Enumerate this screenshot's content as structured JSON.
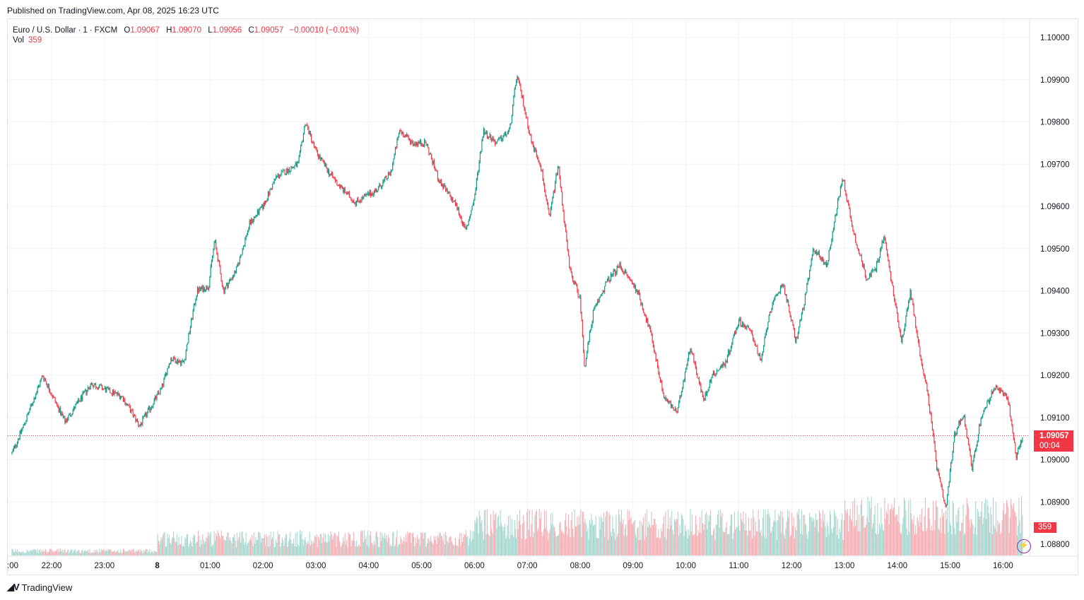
{
  "header": {
    "published": "Published on TradingView.com, Apr 08, 2025 16:23 UTC"
  },
  "legend": {
    "symbol": "Euro / U.S. Dollar",
    "interval": "1",
    "exchange": "FXCM",
    "open_label": "O",
    "open": "1.09067",
    "high_label": "H",
    "high": "1.09070",
    "low_label": "L",
    "low": "1.09056",
    "close_label": "C",
    "close": "1.09057",
    "change": "−0.00010 (−0.01%)",
    "vol_label": "Vol",
    "vol_value": "359"
  },
  "price_tag": {
    "price": "1.09057",
    "countdown": "00:04"
  },
  "volume_tag": "359",
  "footer": {
    "brand": "TradingView"
  },
  "colors": {
    "up": "#089981",
    "down": "#f23645",
    "up_volume": "#9fd6cc",
    "down_volume": "#f6a9af",
    "grid": "#f0f3fa"
  },
  "icons": {
    "lightning": "lightning-icon",
    "logo": "tradingview-logo-icon"
  },
  "chart_data": {
    "type": "candlestick",
    "interval_minutes": 1,
    "y_ticks": [
      "1.10000",
      "1.09900",
      "1.09800",
      "1.09700",
      "1.09600",
      "1.09500",
      "1.09400",
      "1.09300",
      "1.09200",
      "1.09100",
      "1.09000",
      "1.08900",
      "1.08800"
    ],
    "x_ticks": [
      ":00",
      "22:00",
      "23:00",
      "8",
      "01:00",
      "02:00",
      "03:00",
      "04:00",
      "05:00",
      "06:00",
      "07:00",
      "08:00",
      "09:00",
      "10:00",
      "11:00",
      "12:00",
      "13:00",
      "14:00",
      "15:00",
      "16:00"
    ],
    "ylim": [
      1.0878,
      1.1008
    ],
    "last_price": 1.09057,
    "close_path": [
      {
        "t": "21:15",
        "price": 1.09015
      },
      {
        "t": "21:30",
        "price": 1.0909
      },
      {
        "t": "21:50",
        "price": 1.092
      },
      {
        "t": "22:15",
        "price": 1.0909
      },
      {
        "t": "22:45",
        "price": 1.0918
      },
      {
        "t": "23:20",
        "price": 1.0915
      },
      {
        "t": "23:40",
        "price": 1.0908
      },
      {
        "t": "00:05",
        "price": 1.0917
      },
      {
        "t": "00:15",
        "price": 1.0924
      },
      {
        "t": "00:30",
        "price": 1.0923
      },
      {
        "t": "00:45",
        "price": 1.094
      },
      {
        "t": "00:58",
        "price": 1.0941
      },
      {
        "t": "01:05",
        "price": 1.0952
      },
      {
        "t": "01:15",
        "price": 1.094
      },
      {
        "t": "01:30",
        "price": 1.0945
      },
      {
        "t": "01:45",
        "price": 1.0956
      },
      {
        "t": "02:00",
        "price": 1.096
      },
      {
        "t": "02:15",
        "price": 1.0967
      },
      {
        "t": "02:40",
        "price": 1.097
      },
      {
        "t": "02:48",
        "price": 1.098
      },
      {
        "t": "03:00",
        "price": 1.0973
      },
      {
        "t": "03:15",
        "price": 1.0968
      },
      {
        "t": "03:30",
        "price": 1.0964
      },
      {
        "t": "03:45",
        "price": 1.0961
      },
      {
        "t": "04:10",
        "price": 1.0964
      },
      {
        "t": "04:25",
        "price": 1.0968
      },
      {
        "t": "04:35",
        "price": 1.0978
      },
      {
        "t": "04:50",
        "price": 1.0975
      },
      {
        "t": "05:05",
        "price": 1.0975
      },
      {
        "t": "05:20",
        "price": 1.0966
      },
      {
        "t": "05:40",
        "price": 1.096
      },
      {
        "t": "05:50",
        "price": 1.0954
      },
      {
        "t": "06:00",
        "price": 1.0962
      },
      {
        "t": "06:10",
        "price": 1.0978
      },
      {
        "t": "06:25",
        "price": 1.0975
      },
      {
        "t": "06:40",
        "price": 1.0978
      },
      {
        "t": "06:48",
        "price": 1.0991
      },
      {
        "t": "06:55",
        "price": 1.0985
      },
      {
        "t": "07:05",
        "price": 1.0975
      },
      {
        "t": "07:15",
        "price": 1.097
      },
      {
        "t": "07:25",
        "price": 1.0957
      },
      {
        "t": "07:35",
        "price": 1.097
      },
      {
        "t": "07:48",
        "price": 1.0945
      },
      {
        "t": "08:00",
        "price": 1.0938
      },
      {
        "t": "08:05",
        "price": 1.0922
      },
      {
        "t": "08:15",
        "price": 1.0935
      },
      {
        "t": "08:30",
        "price": 1.0942
      },
      {
        "t": "08:45",
        "price": 1.0946
      },
      {
        "t": "09:05",
        "price": 1.094
      },
      {
        "t": "09:20",
        "price": 1.093
      },
      {
        "t": "09:35",
        "price": 1.0915
      },
      {
        "t": "09:50",
        "price": 1.0911
      },
      {
        "t": "10:05",
        "price": 1.0927
      },
      {
        "t": "10:20",
        "price": 1.0914
      },
      {
        "t": "10:30",
        "price": 1.092
      },
      {
        "t": "10:45",
        "price": 1.0923
      },
      {
        "t": "11:00",
        "price": 1.0933
      },
      {
        "t": "11:15",
        "price": 1.093
      },
      {
        "t": "11:25",
        "price": 1.0923
      },
      {
        "t": "11:35",
        "price": 1.0935
      },
      {
        "t": "11:50",
        "price": 1.0942
      },
      {
        "t": "12:05",
        "price": 1.0928
      },
      {
        "t": "12:15",
        "price": 1.0938
      },
      {
        "t": "12:25",
        "price": 1.095
      },
      {
        "t": "12:40",
        "price": 1.0946
      },
      {
        "t": "12:50",
        "price": 1.0958
      },
      {
        "t": "12:58",
        "price": 1.0967
      },
      {
        "t": "13:10",
        "price": 1.0954
      },
      {
        "t": "13:25",
        "price": 1.0943
      },
      {
        "t": "13:35",
        "price": 1.0945
      },
      {
        "t": "13:45",
        "price": 1.0953
      },
      {
        "t": "13:55",
        "price": 1.094
      },
      {
        "t": "14:05",
        "price": 1.0928
      },
      {
        "t": "14:15",
        "price": 1.094
      },
      {
        "t": "14:25",
        "price": 1.0926
      },
      {
        "t": "14:35",
        "price": 1.0915
      },
      {
        "t": "14:45",
        "price": 1.0898
      },
      {
        "t": "14:55",
        "price": 1.0888
      },
      {
        "t": "15:05",
        "price": 1.0906
      },
      {
        "t": "15:15",
        "price": 1.0911
      },
      {
        "t": "15:25",
        "price": 1.0898
      },
      {
        "t": "15:35",
        "price": 1.091
      },
      {
        "t": "15:50",
        "price": 1.0917
      },
      {
        "t": "16:05",
        "price": 1.0915
      },
      {
        "t": "16:15",
        "price": 1.0901
      },
      {
        "t": "16:23",
        "price": 1.09057
      }
    ]
  }
}
